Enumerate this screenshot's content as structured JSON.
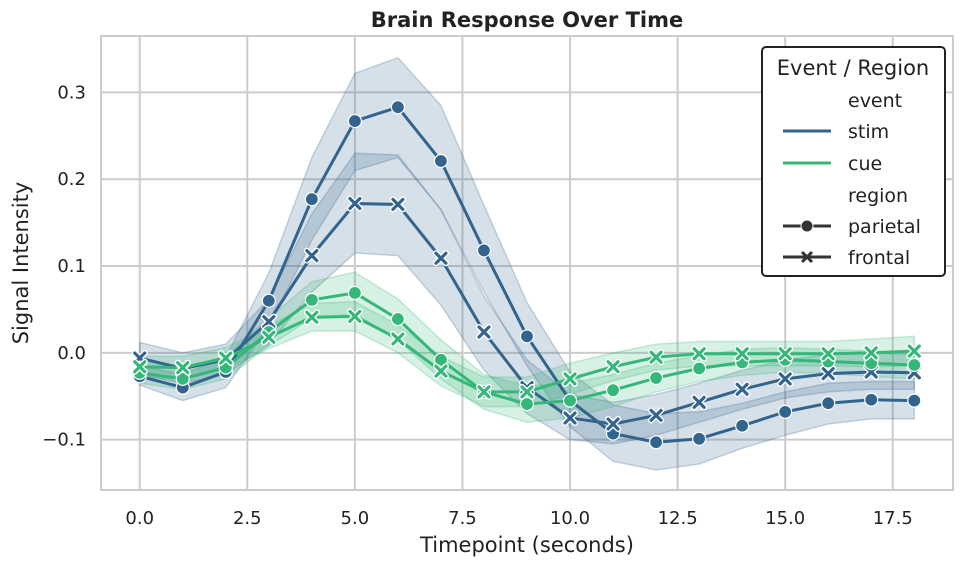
{
  "chart_data": {
    "type": "line",
    "title": "Brain Response Over Time",
    "xlabel": "Timepoint (seconds)",
    "ylabel": "Signal Intensity",
    "xlim": [
      -0.9,
      18.9
    ],
    "ylim": [
      -0.158,
      0.365
    ],
    "xticks": [
      0.0,
      2.5,
      5.0,
      7.5,
      10.0,
      12.5,
      15.0,
      17.5
    ],
    "xtick_labels": [
      "0.0",
      "2.5",
      "5.0",
      "7.5",
      "10.0",
      "12.5",
      "15.0",
      "17.5"
    ],
    "yticks": [
      -0.1,
      0.0,
      0.1,
      0.2,
      0.3
    ],
    "ytick_labels": [
      "−0.1",
      "0.0",
      "0.1",
      "0.2",
      "0.3"
    ],
    "grid": true,
    "legend": {
      "title": "Event / Region",
      "placement": "top-right",
      "hue_title": "event",
      "style_title": "region",
      "hue_entries": [
        {
          "label": "stim",
          "color": "#32648e"
        },
        {
          "label": "cue",
          "color": "#35b779"
        }
      ],
      "style_entries": [
        {
          "label": "parietal",
          "marker": "circle"
        },
        {
          "label": "frontal",
          "marker": "x"
        }
      ]
    },
    "x": [
      0,
      1,
      2,
      3,
      4,
      5,
      6,
      7,
      8,
      9,
      10,
      11,
      12,
      13,
      14,
      15,
      16,
      17,
      18
    ],
    "series": [
      {
        "name": "stim parietal",
        "event": "stim",
        "region": "parietal",
        "marker": "circle",
        "color": "#32648e",
        "values": [
          -0.027,
          -0.04,
          -0.022,
          0.06,
          0.177,
          0.267,
          0.283,
          0.221,
          0.118,
          0.019,
          -0.055,
          -0.093,
          -0.103,
          -0.099,
          -0.084,
          -0.068,
          -0.058,
          -0.054,
          -0.055
        ],
        "lower": [
          -0.037,
          -0.055,
          -0.04,
          0.03,
          0.13,
          0.21,
          0.225,
          0.165,
          0.07,
          -0.015,
          -0.085,
          -0.125,
          -0.135,
          -0.128,
          -0.11,
          -0.095,
          -0.082,
          -0.076,
          -0.076
        ],
        "upper": [
          -0.015,
          -0.025,
          -0.005,
          0.092,
          0.225,
          0.322,
          0.34,
          0.285,
          0.17,
          0.058,
          -0.022,
          -0.06,
          -0.07,
          -0.068,
          -0.058,
          -0.045,
          -0.035,
          -0.033,
          -0.033
        ]
      },
      {
        "name": "stim frontal",
        "event": "stim",
        "region": "frontal",
        "marker": "x",
        "color": "#32648e",
        "values": [
          -0.006,
          -0.018,
          -0.008,
          0.036,
          0.112,
          0.172,
          0.171,
          0.109,
          0.024,
          -0.04,
          -0.075,
          -0.082,
          -0.072,
          -0.057,
          -0.042,
          -0.03,
          -0.024,
          -0.022,
          -0.023
        ],
        "lower": [
          -0.025,
          -0.035,
          -0.025,
          0.01,
          0.07,
          0.115,
          0.112,
          0.055,
          -0.02,
          -0.07,
          -0.1,
          -0.105,
          -0.095,
          -0.08,
          -0.065,
          -0.052,
          -0.045,
          -0.042,
          -0.042
        ],
        "upper": [
          0.012,
          0.0,
          0.01,
          0.062,
          0.16,
          0.23,
          0.228,
          0.165,
          0.065,
          -0.008,
          -0.048,
          -0.057,
          -0.048,
          -0.035,
          -0.02,
          -0.008,
          -0.002,
          0.0,
          -0.002
        ]
      },
      {
        "name": "cue parietal",
        "event": "cue",
        "region": "parietal",
        "marker": "circle",
        "color": "#35b779",
        "values": [
          -0.023,
          -0.03,
          -0.017,
          0.024,
          0.061,
          0.069,
          0.039,
          -0.008,
          -0.045,
          -0.059,
          -0.055,
          -0.043,
          -0.029,
          -0.018,
          -0.011,
          -0.008,
          -0.01,
          -0.012,
          -0.014
        ],
        "lower": [
          -0.035,
          -0.042,
          -0.03,
          0.008,
          0.04,
          0.045,
          0.015,
          -0.03,
          -0.065,
          -0.08,
          -0.075,
          -0.062,
          -0.045,
          -0.033,
          -0.026,
          -0.022,
          -0.024,
          -0.027,
          -0.03
        ],
        "upper": [
          -0.01,
          -0.017,
          -0.004,
          0.04,
          0.082,
          0.093,
          0.062,
          0.015,
          -0.025,
          -0.038,
          -0.035,
          -0.025,
          -0.012,
          -0.003,
          0.004,
          0.006,
          0.004,
          0.002,
          0.001
        ]
      },
      {
        "name": "cue frontal",
        "event": "cue",
        "region": "frontal",
        "marker": "x",
        "color": "#35b779",
        "values": [
          -0.016,
          -0.017,
          -0.006,
          0.018,
          0.041,
          0.042,
          0.016,
          -0.021,
          -0.045,
          -0.045,
          -0.03,
          -0.016,
          -0.005,
          -0.001,
          -0.001,
          -0.001,
          -0.001,
          0.0,
          0.002
        ],
        "lower": [
          -0.028,
          -0.03,
          -0.018,
          0.005,
          0.025,
          0.025,
          0.0,
          -0.038,
          -0.062,
          -0.062,
          -0.048,
          -0.032,
          -0.02,
          -0.015,
          -0.015,
          -0.015,
          -0.015,
          -0.016,
          -0.015
        ],
        "upper": [
          -0.004,
          -0.004,
          0.006,
          0.031,
          0.057,
          0.059,
          0.032,
          -0.004,
          -0.028,
          -0.028,
          -0.012,
          0.0,
          0.01,
          0.013,
          0.013,
          0.013,
          0.013,
          0.016,
          0.019
        ]
      }
    ]
  }
}
